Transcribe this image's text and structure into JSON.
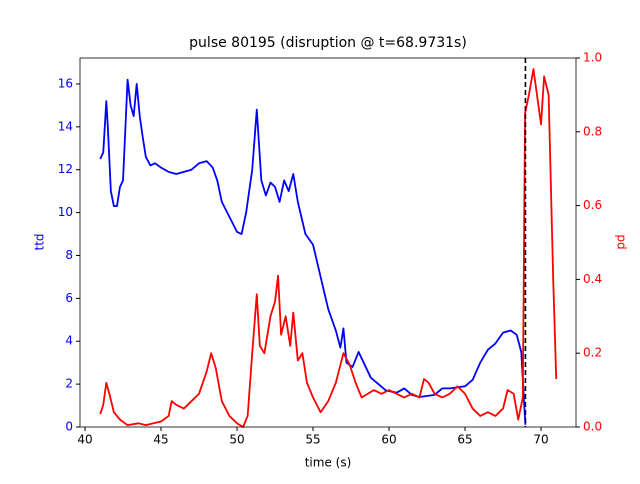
{
  "chart_data": {
    "type": "line",
    "title": "pulse 80195 (disruption @ t=68.9731s)",
    "x_label": "time (s)",
    "y_label": "ttd",
    "y2_label": "pd",
    "y_color": "#0000ff",
    "y2_color": "#ff0000",
    "xlim": [
      39.67,
      72.3
    ],
    "xticks": [
      40,
      45,
      50,
      55,
      60,
      65,
      70
    ],
    "ylim": [
      0,
      17.21
    ],
    "yticks": [
      0,
      2,
      4,
      6,
      8,
      10,
      12,
      14,
      16
    ],
    "y2lim": [
      0,
      1
    ],
    "y2ticks": [
      {
        "value": 0,
        "label": "0.0"
      },
      {
        "value": 0.2,
        "label": "0.2"
      },
      {
        "value": 0.4,
        "label": "0.4"
      },
      {
        "value": 0.6,
        "label": "0.6"
      },
      {
        "value": 0.8,
        "label": "0.8"
      },
      {
        "value": 1,
        "label": "1.0"
      }
    ],
    "vlines": [
      {
        "x": 68.9731,
        "color": "#000000",
        "dashed": true
      }
    ],
    "series": [
      {
        "name": "ttd",
        "color": "#0000ff",
        "axis": "y",
        "x": [
          41.0,
          41.2,
          41.4,
          41.5,
          41.7,
          41.9,
          42.1,
          42.3,
          42.5,
          42.8,
          43.0,
          43.2,
          43.4,
          43.6,
          43.8,
          44.0,
          44.3,
          44.6,
          45.0,
          45.5,
          46.0,
          46.5,
          47.0,
          47.5,
          48.0,
          48.4,
          48.7,
          49.0,
          49.5,
          50.0,
          50.3,
          50.6,
          51.0,
          51.3,
          51.6,
          51.9,
          52.2,
          52.5,
          52.8,
          53.1,
          53.4,
          53.7,
          54.0,
          54.5,
          55.0,
          55.5,
          56.0,
          56.5,
          56.8,
          57.0,
          57.2,
          57.6,
          58.0,
          58.4,
          58.8,
          59.3,
          59.8,
          60.5,
          61.0,
          61.5,
          62.0,
          63.0,
          63.5,
          64.0,
          65.0,
          65.5,
          66.0,
          66.5,
          67.0,
          67.5,
          68.0,
          68.4,
          68.7,
          68.97
        ],
        "values": [
          12.5,
          12.8,
          15.2,
          14.0,
          11.0,
          10.3,
          10.3,
          11.2,
          11.5,
          16.2,
          15.0,
          14.5,
          16.0,
          14.5,
          13.5,
          12.6,
          12.2,
          12.3,
          12.1,
          11.9,
          11.8,
          11.9,
          12.0,
          12.3,
          12.4,
          12.1,
          11.5,
          10.5,
          9.8,
          9.1,
          9.0,
          10.0,
          12.0,
          14.8,
          11.5,
          10.8,
          11.4,
          11.2,
          10.5,
          11.5,
          11.0,
          11.8,
          10.5,
          9.0,
          8.5,
          7.0,
          5.5,
          4.5,
          3.7,
          4.6,
          3.0,
          2.8,
          3.5,
          2.9,
          2.3,
          2.0,
          1.7,
          1.6,
          1.8,
          1.5,
          1.4,
          1.5,
          1.8,
          1.8,
          1.9,
          2.2,
          3.0,
          3.6,
          3.9,
          4.4,
          4.5,
          4.3,
          3.5,
          0.1
        ]
      },
      {
        "name": "pd",
        "color": "#ff0000",
        "axis": "y2",
        "x": [
          41.0,
          41.2,
          41.4,
          41.6,
          41.9,
          42.3,
          42.8,
          43.5,
          44.0,
          44.5,
          45.0,
          45.5,
          45.7,
          46.0,
          46.5,
          47.0,
          47.5,
          48.0,
          48.3,
          48.6,
          49.0,
          49.5,
          50.0,
          50.4,
          50.7,
          51.0,
          51.3,
          51.5,
          51.8,
          52.2,
          52.5,
          52.7,
          52.9,
          53.2,
          53.5,
          53.7,
          54.0,
          54.3,
          54.6,
          55.0,
          55.5,
          56.0,
          56.5,
          57.0,
          57.4,
          57.8,
          58.2,
          58.6,
          59.0,
          59.5,
          60.0,
          60.5,
          61.0,
          61.5,
          62.0,
          62.3,
          62.6,
          63.0,
          63.5,
          64.0,
          64.5,
          65.0,
          65.5,
          66.0,
          66.5,
          67.0,
          67.5,
          67.8,
          68.2,
          68.5,
          68.8,
          68.95,
          69.2,
          69.5,
          69.8,
          70.0,
          70.2,
          70.5,
          70.8,
          71.0
        ],
        "values": [
          0.035,
          0.06,
          0.12,
          0.09,
          0.04,
          0.02,
          0.005,
          0.01,
          0.005,
          0.01,
          0.015,
          0.03,
          0.07,
          0.06,
          0.05,
          0.07,
          0.09,
          0.15,
          0.2,
          0.16,
          0.07,
          0.03,
          0.01,
          0,
          0.03,
          0.2,
          0.36,
          0.22,
          0.2,
          0.3,
          0.34,
          0.41,
          0.25,
          0.3,
          0.22,
          0.31,
          0.18,
          0.2,
          0.12,
          0.08,
          0.04,
          0.07,
          0.12,
          0.2,
          0.17,
          0.12,
          0.08,
          0.09,
          0.1,
          0.09,
          0.1,
          0.09,
          0.08,
          0.09,
          0.08,
          0.13,
          0.12,
          0.09,
          0.08,
          0.09,
          0.11,
          0.09,
          0.05,
          0.03,
          0.04,
          0.03,
          0.05,
          0.1,
          0.09,
          0.02,
          0.08,
          0.85,
          0.9,
          0.97,
          0.88,
          0.82,
          0.95,
          0.9,
          0.4,
          0.13
        ]
      }
    ]
  }
}
